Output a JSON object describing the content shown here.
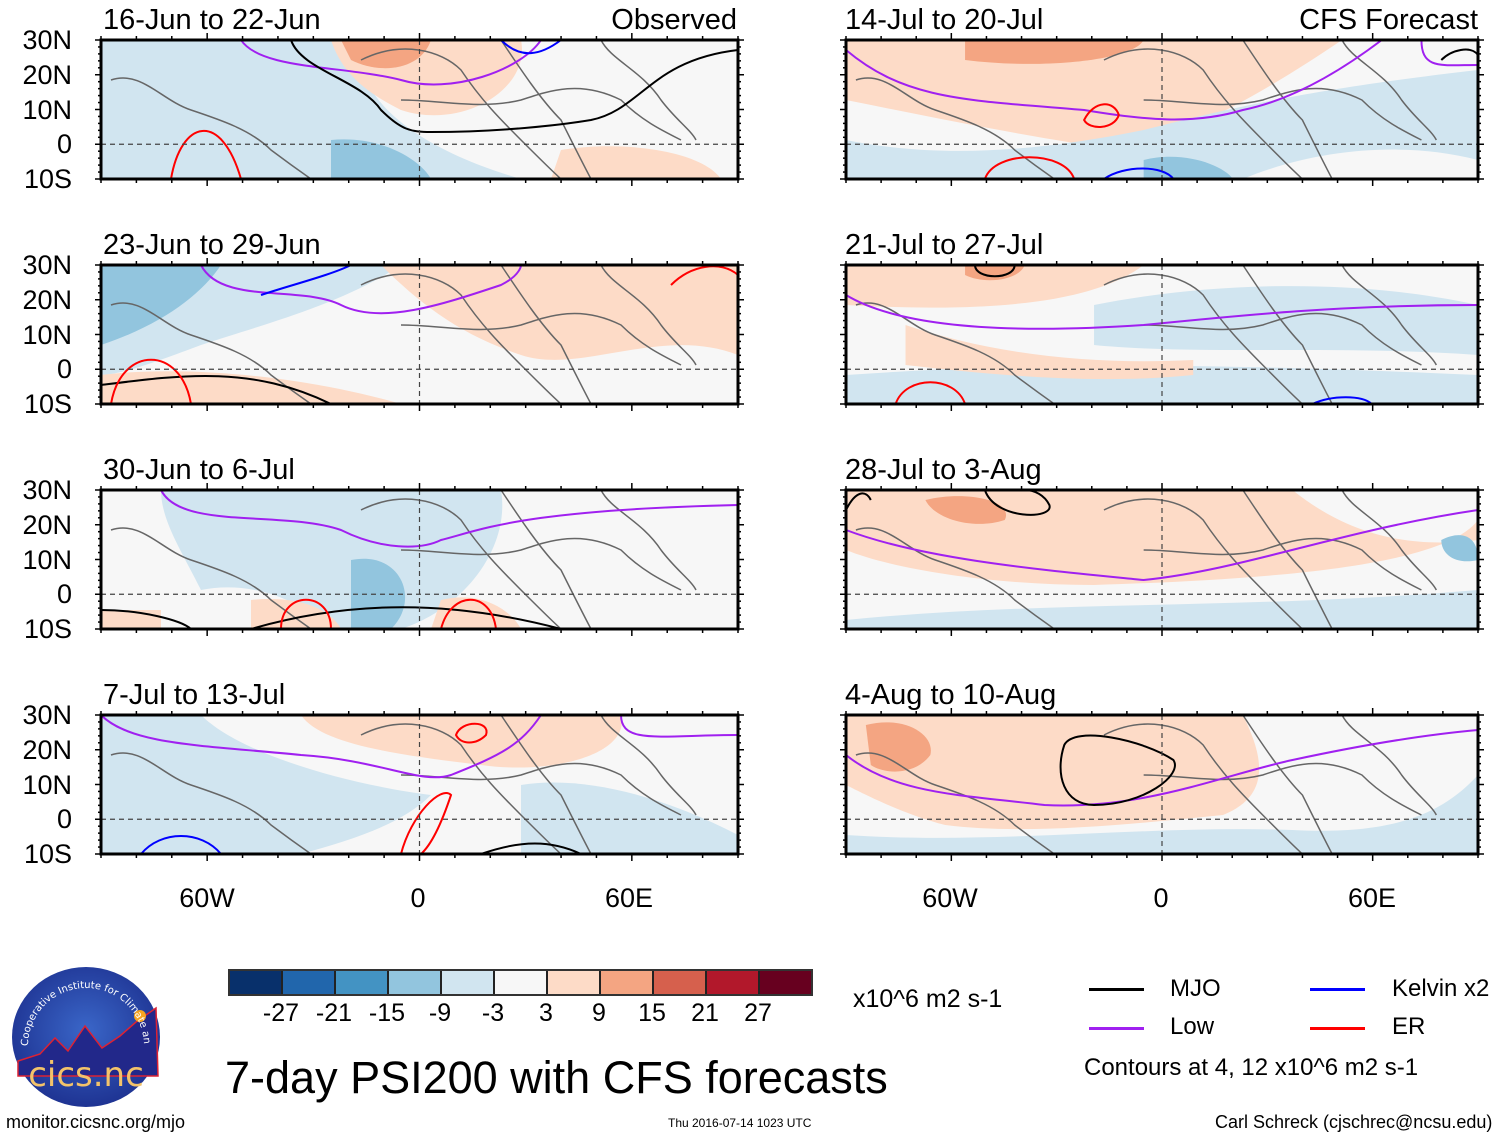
{
  "header": {
    "observed_tag": "Observed",
    "forecast_tag": "CFS Forecast"
  },
  "panels": {
    "left": [
      {
        "title": "16-Jun to 22-Jun"
      },
      {
        "title": "23-Jun to 29-Jun"
      },
      {
        "title": "30-Jun to 6-Jul"
      },
      {
        "title": "7-Jul to 13-Jul"
      }
    ],
    "right": [
      {
        "title": "14-Jul to 20-Jul"
      },
      {
        "title": "21-Jul to 27-Jul"
      },
      {
        "title": "28-Jul to 3-Aug"
      },
      {
        "title": "4-Aug to 10-Aug"
      }
    ]
  },
  "axes": {
    "lat_labels": [
      "30N",
      "20N",
      "10N",
      "0",
      "10S"
    ],
    "lon_labels": [
      "60W",
      "0",
      "60E"
    ],
    "lat_range": [
      -10,
      30
    ],
    "lon_range": [
      -90,
      90
    ]
  },
  "colorbar": {
    "colors": [
      "#08306b",
      "#2166ac",
      "#4393c3",
      "#92c5de",
      "#d1e5f0",
      "#f7f7f7",
      "#fddbc7",
      "#f4a582",
      "#d6604d",
      "#b2182b",
      "#67001f"
    ],
    "labels": [
      "-27",
      "-21",
      "-15",
      "-9",
      "-3",
      "3",
      "9",
      "15",
      "21",
      "27"
    ],
    "units": "x10^6 m2 s-1"
  },
  "legend": {
    "items": [
      {
        "label": "MJO",
        "color": "#000000"
      },
      {
        "label": "Kelvin x2",
        "color": "#0000ff"
      },
      {
        "label": "Low",
        "color": "#a020f0"
      },
      {
        "label": "ER",
        "color": "#ff0000"
      }
    ],
    "note": "Contours at 4, 12 x10^6 m2 s-1"
  },
  "title": "7-day PSI200 with CFS forecasts",
  "footer": {
    "url": "monitor.cicsnc.org/mjo",
    "timestamp": "Thu 2016-07-14 1023 UTC",
    "author": "Carl Schreck (cjschrec@ncsu.edu)"
  },
  "logo": {
    "text": "cics.nc",
    "ring_text": "Cooperative Institute for Climate and Satellites"
  }
}
